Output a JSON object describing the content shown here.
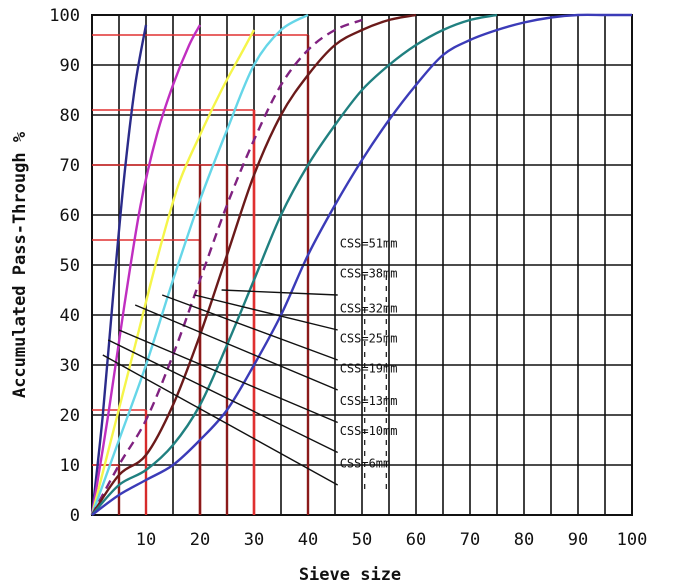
{
  "chart_data": {
    "type": "line",
    "xlabel": "Sieve size",
    "ylabel": "Accumulated Pass-Through  %",
    "xlim": [
      0,
      100
    ],
    "ylim": [
      0,
      100
    ],
    "x_ticks": [
      "10",
      "20",
      "30",
      "40",
      "50",
      "60",
      "70",
      "80",
      "90",
      "100"
    ],
    "y_ticks": [
      "0",
      "10",
      "20",
      "30",
      "40",
      "50",
      "60",
      "70",
      "80",
      "90",
      "100"
    ],
    "grid": true,
    "series": [
      {
        "label": "CSS=6mm",
        "color": "#2b2b8a",
        "x": [
          0,
          2,
          4,
          6,
          8,
          10
        ],
        "y": [
          0,
          20,
          45,
          68,
          86,
          98
        ]
      },
      {
        "label": "CSS=10mm",
        "color": "#c02ec0",
        "x": [
          0,
          3,
          6,
          9,
          12,
          15,
          18,
          20
        ],
        "y": [
          0,
          20,
          42,
          62,
          76,
          86,
          94,
          98
        ]
      },
      {
        "label": "CSS=13mm",
        "color": "#f5f54a",
        "x": [
          0,
          4,
          8,
          12,
          16,
          20,
          24,
          28,
          30
        ],
        "y": [
          0,
          17,
          34,
          51,
          66,
          76,
          85,
          93,
          97
        ]
      },
      {
        "label": "CSS=19mm",
        "color": "#66d6e8",
        "x": [
          0,
          5,
          10,
          15,
          20,
          25,
          30,
          35,
          40
        ],
        "y": [
          0,
          15,
          30,
          47,
          63,
          77,
          90,
          97,
          100
        ]
      },
      {
        "label": "CSS=25mm",
        "color": "#802280",
        "dashed": true,
        "x": [
          0,
          5,
          10,
          15,
          20,
          25,
          30,
          35,
          40,
          45,
          50
        ],
        "y": [
          0,
          10,
          19,
          32,
          47,
          62,
          75,
          86,
          93,
          97,
          99
        ]
      },
      {
        "label": "CSS=32mm",
        "color": "#6b1a1a",
        "x": [
          0,
          5,
          10,
          15,
          20,
          25,
          30,
          35,
          40,
          45,
          50,
          55,
          60
        ],
        "y": [
          0,
          8,
          12,
          22,
          36,
          52,
          68,
          80,
          88,
          94,
          97,
          99,
          100
        ]
      },
      {
        "label": "CSS=38mm",
        "color": "#208080",
        "x": [
          0,
          5,
          10,
          15,
          20,
          25,
          30,
          35,
          40,
          45,
          50,
          55,
          60,
          65,
          70,
          75
        ],
        "y": [
          0,
          6,
          9,
          14,
          22,
          34,
          47,
          60,
          70,
          78,
          85,
          90,
          94,
          97,
          99,
          100
        ]
      },
      {
        "label": "CSS=51mm",
        "color": "#3b3bb8",
        "x": [
          0,
          5,
          10,
          15,
          20,
          25,
          30,
          35,
          40,
          45,
          50,
          55,
          60,
          65,
          70,
          75,
          80,
          85,
          90,
          95,
          100
        ],
        "y": [
          0,
          4,
          7,
          10,
          15,
          21,
          30,
          40,
          52,
          62,
          71,
          79,
          86,
          92,
          95,
          97,
          98.5,
          99.5,
          100,
          100,
          100
        ]
      }
    ],
    "annotations": [
      "CSS=51mm",
      "CSS=38mm",
      "CSS=32mm",
      "CSS=25mm",
      "CSS=19mm",
      "CSS=13mm",
      "CSS=10mm",
      "CSS=6mm"
    ]
  }
}
